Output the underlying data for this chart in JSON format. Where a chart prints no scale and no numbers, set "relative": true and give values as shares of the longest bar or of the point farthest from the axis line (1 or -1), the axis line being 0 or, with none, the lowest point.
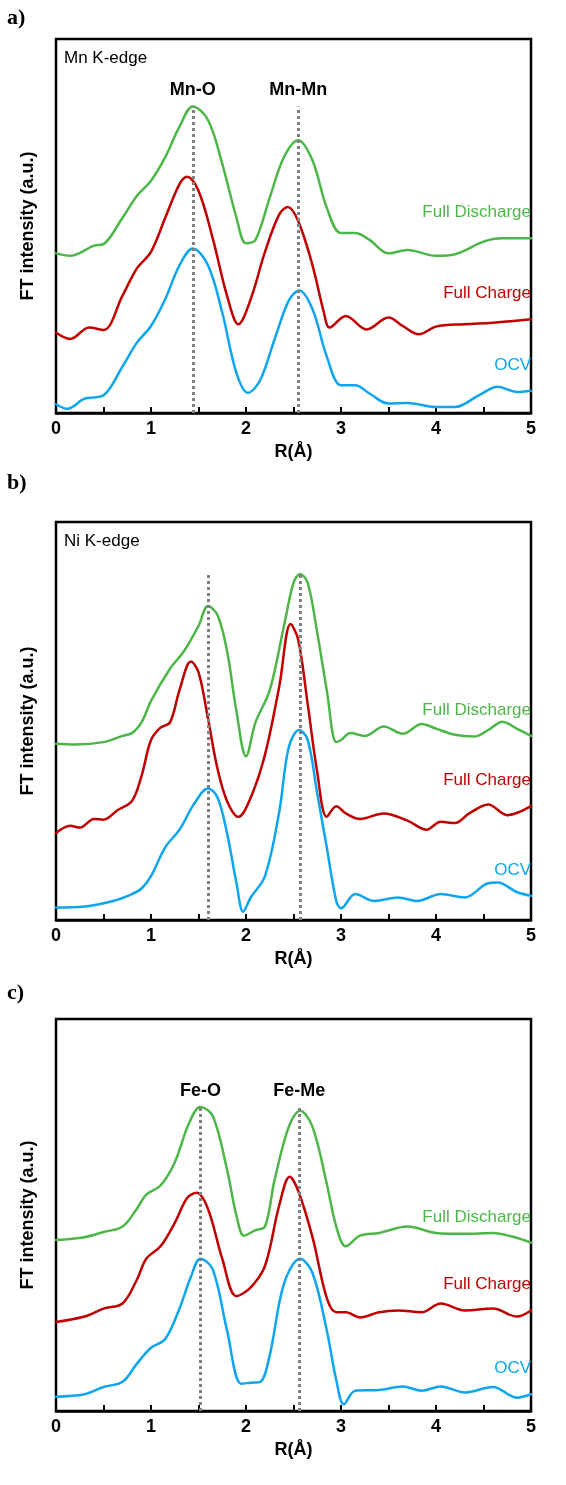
{
  "chart_data": [
    {
      "type": "line",
      "title": "a)",
      "xlabel": "R(Å)",
      "ylabel": "FT intensity (a.u.)",
      "relative": true,
      "xlim": [
        0,
        5
      ],
      "xticks": [
        0,
        {
          "value": 0.5,
          "label": null
        },
        1,
        {
          "value": 1.5,
          "label": null
        },
        2,
        {
          "value": 2.5,
          "label": null
        },
        3,
        {
          "value": 3.5,
          "label": null
        },
        4,
        {
          "value": 4.5,
          "label": null
        },
        5
      ],
      "grid": false,
      "legend": false,
      "marker": "none",
      "line_style": "solid",
      "annotations": [
        "Mn K-edge"
      ],
      "ref_lines": [
        {
          "axis": "x",
          "value": 1.44,
          "label": "Mn-O",
          "color": "#808080",
          "line_style": "dotted"
        },
        {
          "axis": "x",
          "value": 2.55,
          "label": "Mn-Mn",
          "color": "#808080",
          "line_style": "dotted"
        }
      ],
      "series": [
        {
          "name": "Full Discharge",
          "color": "#4cb648",
          "x": [
            0,
            0.15,
            0.4,
            0.5,
            0.7,
            0.85,
            1.0,
            1.15,
            1.3,
            1.44,
            1.6,
            1.75,
            1.9,
            2.0,
            2.1,
            2.25,
            2.4,
            2.55,
            2.7,
            2.85,
            3.0,
            3.15,
            3.3,
            3.5,
            3.7,
            4.0,
            4.2,
            4.5,
            4.7,
            5.0
          ],
          "values": [
            0.521,
            0.513,
            0.546,
            0.551,
            0.637,
            0.708,
            0.758,
            0.835,
            0.934,
            1,
            0.956,
            0.813,
            0.637,
            0.554,
            0.565,
            0.703,
            0.835,
            0.89,
            0.824,
            0.67,
            0.587,
            0.587,
            0.565,
            0.521,
            0.532,
            0.513,
            0.518,
            0.559,
            0.57,
            0.57
          ]
        },
        {
          "name": "Full Charge",
          "color": "#c00000",
          "x": [
            0,
            0.15,
            0.35,
            0.5,
            0.7,
            0.85,
            1.0,
            1.15,
            1.3,
            1.38,
            1.5,
            1.65,
            1.8,
            1.92,
            2.05,
            2.2,
            2.35,
            2.44,
            2.55,
            2.7,
            2.82,
            2.88,
            3.05,
            3.27,
            3.5,
            3.65,
            3.82,
            4.0,
            4.3,
            4.6,
            5.0
          ],
          "values": [
            0.262,
            0.242,
            0.279,
            0.271,
            0.383,
            0.471,
            0.526,
            0.637,
            0.747,
            0.771,
            0.725,
            0.57,
            0.383,
            0.29,
            0.372,
            0.526,
            0.648,
            0.672,
            0.626,
            0.482,
            0.328,
            0.279,
            0.317,
            0.273,
            0.312,
            0.284,
            0.257,
            0.282,
            0.29,
            0.295,
            0.306
          ]
        },
        {
          "name": "OCV",
          "color": "#0ea5ef",
          "x": [
            0,
            0.12,
            0.3,
            0.5,
            0.7,
            0.85,
            1.0,
            1.15,
            1.3,
            1.44,
            1.6,
            1.75,
            1.9,
            2.02,
            2.15,
            2.3,
            2.45,
            2.56,
            2.7,
            2.85,
            3.0,
            3.15,
            3.3,
            3.5,
            3.7,
            4.0,
            4.2,
            4.45,
            4.65,
            4.85,
            5.0
          ],
          "values": [
            0.029,
            0.014,
            0.047,
            0.058,
            0.152,
            0.229,
            0.284,
            0.372,
            0.482,
            0.537,
            0.482,
            0.328,
            0.13,
            0.066,
            0.108,
            0.24,
            0.367,
            0.4,
            0.339,
            0.185,
            0.091,
            0.091,
            0.064,
            0.031,
            0.033,
            0.02,
            0.02,
            0.058,
            0.086,
            0.069,
            0.073
          ]
        }
      ]
    },
    {
      "type": "line",
      "title": "b)",
      "xlabel": "R(Å)",
      "ylabel": "FT intensity (a.u.)",
      "relative": true,
      "xlim": [
        0,
        5
      ],
      "xticks": [
        0,
        {
          "value": 0.5,
          "label": null
        },
        1,
        {
          "value": 1.5,
          "label": null
        },
        2,
        {
          "value": 2.5,
          "label": null
        },
        3,
        {
          "value": 3.5,
          "label": null
        },
        4,
        {
          "value": 4.5,
          "label": null
        },
        5
      ],
      "grid": false,
      "legend": false,
      "marker": "none",
      "line_style": "solid",
      "annotations": [
        "Ni K-edge"
      ],
      "ref_lines": [
        {
          "axis": "x",
          "value": 1.6,
          "color": "#808080",
          "line_style": "dotted"
        },
        {
          "axis": "x",
          "value": 2.57,
          "color": "#808080",
          "line_style": "dotted"
        }
      ],
      "series": [
        {
          "name": "Full Discharge",
          "color": "#4cb648",
          "x": [
            0,
            0.2,
            0.5,
            0.7,
            0.8,
            0.9,
            1.0,
            1.2,
            1.35,
            1.5,
            1.6,
            1.7,
            1.8,
            1.9,
            2.0,
            2.1,
            2.25,
            2.4,
            2.5,
            2.57,
            2.65,
            2.75,
            2.85,
            2.95,
            3.0,
            3.1,
            3.25,
            3.45,
            3.65,
            3.85,
            4.0,
            4.2,
            4.4,
            4.55,
            4.7,
            4.85,
            5.0
          ],
          "values": [
            0.509,
            0.507,
            0.514,
            0.532,
            0.54,
            0.571,
            0.633,
            0.726,
            0.778,
            0.85,
            0.907,
            0.881,
            0.778,
            0.602,
            0.473,
            0.571,
            0.664,
            0.85,
            0.974,
            1,
            0.974,
            0.83,
            0.664,
            0.514,
            0.52,
            0.54,
            0.532,
            0.559,
            0.538,
            0.566,
            0.553,
            0.535,
            0.53,
            0.549,
            0.573,
            0.553,
            0.532
          ]
        },
        {
          "name": "Full Charge",
          "color": "#c00000",
          "x": [
            0,
            0.15,
            0.25,
            0.4,
            0.5,
            0.65,
            0.8,
            0.9,
            1.0,
            1.1,
            1.2,
            1.3,
            1.42,
            1.5,
            1.6,
            1.7,
            1.8,
            1.92,
            2.05,
            2.2,
            2.35,
            2.47,
            2.55,
            2.65,
            2.75,
            2.85,
            2.95,
            3.05,
            3.2,
            3.45,
            3.7,
            3.9,
            4.05,
            4.2,
            4.35,
            4.55,
            4.75,
            5.0
          ],
          "values": [
            0.251,
            0.272,
            0.267,
            0.292,
            0.29,
            0.318,
            0.344,
            0.416,
            0.52,
            0.556,
            0.571,
            0.664,
            0.747,
            0.716,
            0.582,
            0.437,
            0.344,
            0.298,
            0.354,
            0.478,
            0.675,
            0.855,
            0.809,
            0.623,
            0.427,
            0.298,
            0.329,
            0.308,
            0.292,
            0.308,
            0.287,
            0.261,
            0.284,
            0.28,
            0.308,
            0.334,
            0.303,
            0.329
          ]
        },
        {
          "name": "OCV",
          "color": "#0ea5ef",
          "x": [
            0,
            0.3,
            0.6,
            0.8,
            0.9,
            1.0,
            1.15,
            1.3,
            1.45,
            1.6,
            1.7,
            1.8,
            1.9,
            1.97,
            2.05,
            2.2,
            2.35,
            2.45,
            2.56,
            2.65,
            2.75,
            2.85,
            2.95,
            3.0,
            3.15,
            3.35,
            3.6,
            3.8,
            4.05,
            4.3,
            4.55,
            4.65,
            4.85,
            5.0
          ],
          "values": [
            0.036,
            0.039,
            0.055,
            0.075,
            0.091,
            0.127,
            0.21,
            0.261,
            0.334,
            0.38,
            0.354,
            0.251,
            0.106,
            0.024,
            0.065,
            0.127,
            0.313,
            0.499,
            0.549,
            0.52,
            0.365,
            0.21,
            0.055,
            0.034,
            0.075,
            0.055,
            0.065,
            0.055,
            0.075,
            0.065,
            0.106,
            0.108,
            0.081,
            0.07
          ]
        }
      ]
    },
    {
      "type": "line",
      "title": "c)",
      "xlabel": "R(Å)",
      "ylabel": "FT intensity (a.u.)",
      "relative": true,
      "xlim": [
        0,
        5
      ],
      "xticks": [
        0,
        {
          "value": 0.5,
          "label": null
        },
        1,
        {
          "value": 1.5,
          "label": null
        },
        2,
        {
          "value": 2.5,
          "label": null
        },
        3,
        {
          "value": 3.5,
          "label": null
        },
        4,
        {
          "value": 4.5,
          "label": null
        },
        5
      ],
      "grid": false,
      "legend": false,
      "marker": "none",
      "line_style": "solid",
      "ref_lines": [
        {
          "axis": "x",
          "value": 1.52,
          "label": "Fe-O",
          "color": "#808080",
          "line_style": "dotted"
        },
        {
          "axis": "x",
          "value": 2.56,
          "label": "Fe-Me",
          "color": "#808080",
          "line_style": "dotted"
        }
      ],
      "series": [
        {
          "name": "Full Discharge",
          "color": "#4cb648",
          "x": [
            0,
            0.3,
            0.5,
            0.7,
            0.85,
            0.95,
            1.1,
            1.25,
            1.4,
            1.52,
            1.65,
            1.8,
            1.9,
            1.98,
            2.1,
            2.2,
            2.3,
            2.45,
            2.57,
            2.7,
            2.85,
            2.95,
            3.05,
            3.2,
            3.4,
            3.7,
            4.0,
            4.3,
            4.6,
            4.8,
            5.0
          ],
          "values": [
            0.563,
            0.572,
            0.589,
            0.607,
            0.665,
            0.712,
            0.742,
            0.818,
            0.947,
            1,
            0.971,
            0.795,
            0.642,
            0.577,
            0.595,
            0.607,
            0.759,
            0.935,
            0.988,
            0.935,
            0.748,
            0.607,
            0.542,
            0.577,
            0.586,
            0.607,
            0.586,
            0.583,
            0.586,
            0.574,
            0.554
          ]
        },
        {
          "name": "Full Charge",
          "color": "#c00000",
          "x": [
            0,
            0.3,
            0.5,
            0.7,
            0.85,
            0.95,
            1.1,
            1.25,
            1.38,
            1.48,
            1.6,
            1.75,
            1.9,
            2.05,
            2.2,
            2.35,
            2.46,
            2.55,
            2.7,
            2.85,
            2.95,
            3.05,
            3.2,
            3.4,
            3.6,
            3.85,
            4.05,
            4.3,
            4.6,
            4.85,
            5.0
          ],
          "values": [
            0.293,
            0.311,
            0.337,
            0.354,
            0.431,
            0.501,
            0.542,
            0.619,
            0.701,
            0.718,
            0.665,
            0.501,
            0.378,
            0.407,
            0.478,
            0.677,
            0.771,
            0.724,
            0.572,
            0.372,
            0.325,
            0.325,
            0.308,
            0.325,
            0.331,
            0.325,
            0.354,
            0.331,
            0.337,
            0.311,
            0.331
          ]
        },
        {
          "name": "OCV",
          "color": "#0ea5ef",
          "x": [
            0,
            0.3,
            0.5,
            0.7,
            0.85,
            1.0,
            1.15,
            1.3,
            1.42,
            1.52,
            1.65,
            1.8,
            1.95,
            2.05,
            2.15,
            2.25,
            2.4,
            2.57,
            2.7,
            2.85,
            2.95,
            3.03,
            3.15,
            3.4,
            3.65,
            3.85,
            4.05,
            4.3,
            4.6,
            4.85,
            5.0
          ],
          "values": [
            0.047,
            0.055,
            0.079,
            0.096,
            0.155,
            0.208,
            0.237,
            0.337,
            0.442,
            0.501,
            0.466,
            0.266,
            0.09,
            0.093,
            0.096,
            0.184,
            0.419,
            0.501,
            0.454,
            0.266,
            0.102,
            0.022,
            0.067,
            0.069,
            0.081,
            0.067,
            0.081,
            0.061,
            0.079,
            0.044,
            0.055
          ]
        }
      ]
    }
  ]
}
